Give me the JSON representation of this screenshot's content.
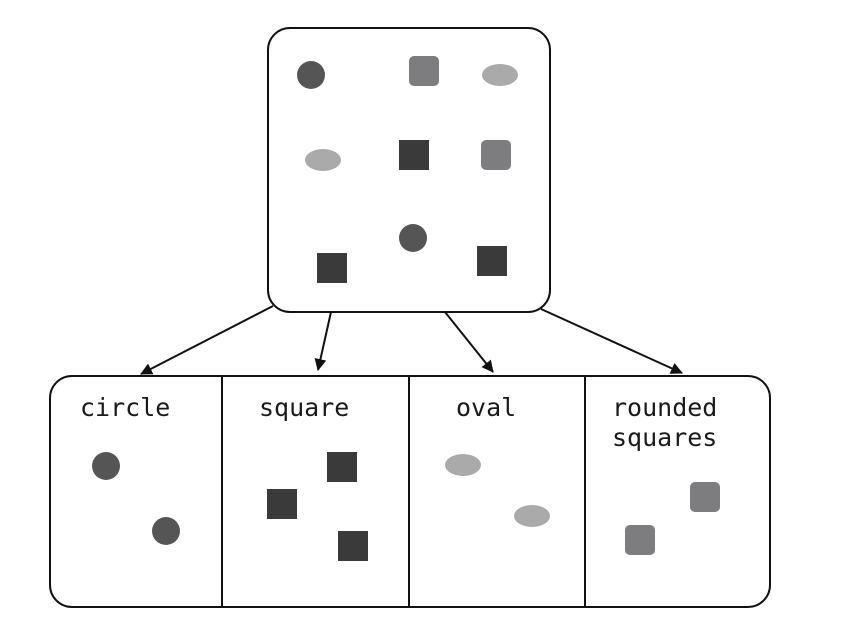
{
  "colors": {
    "circle": "#555555",
    "square": "#3a3a3a",
    "oval": "#aaaaaa",
    "rounded_square": "#7d7d7f",
    "stroke": "#111111",
    "background": "#ffffff"
  },
  "source_group": {
    "items": [
      "circle",
      "rounded-square",
      "oval",
      "oval",
      "square",
      "rounded-square",
      "square",
      "circle",
      "square"
    ]
  },
  "categories": [
    {
      "id": "circle",
      "label": [
        "circle"
      ],
      "shape": "circle",
      "count": 2
    },
    {
      "id": "square",
      "label": [
        "square"
      ],
      "shape": "square",
      "count": 3
    },
    {
      "id": "oval",
      "label": [
        "oval"
      ],
      "shape": "oval",
      "count": 2
    },
    {
      "id": "rounded-squares",
      "label": [
        "rounded",
        "squares"
      ],
      "shape": "rounded-square",
      "count": 2
    }
  ]
}
